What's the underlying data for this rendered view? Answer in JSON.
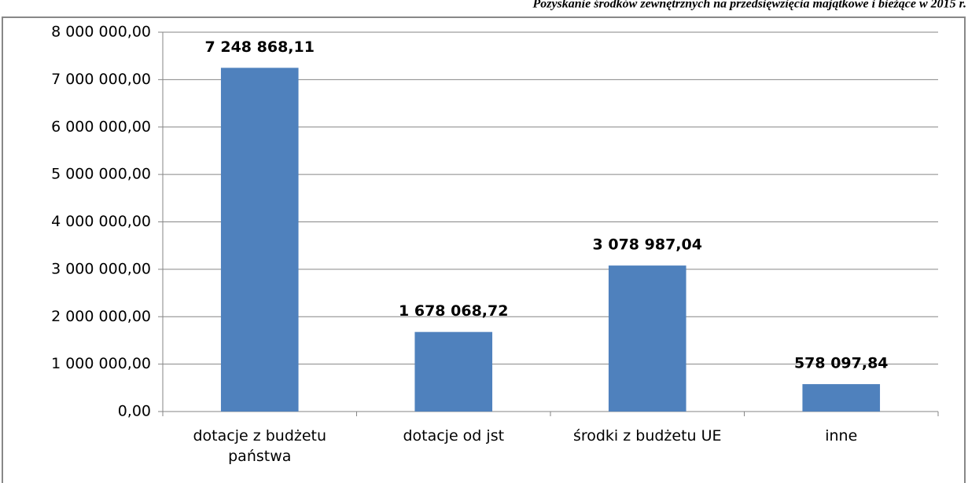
{
  "chart_data": {
    "type": "bar",
    "title": "Pozyskanie środków zewnętrznych na przedsięwzięcia majątkowe i bieżące w 2015 r.",
    "categories": [
      "dotacje z budżetu państwa",
      "dotacje od jst",
      "środki z budżetu UE",
      "inne"
    ],
    "values": [
      7248868.11,
      1678068.72,
      3078987.04,
      578097.84
    ],
    "value_labels": [
      "7 248 868,11",
      "1 678 068,72",
      "3 078 987,04",
      "578 097,84"
    ],
    "color": "#4f81bd",
    "ylim": [
      0,
      8000000
    ],
    "yticks": [
      {
        "value": 0,
        "label": "0,00"
      },
      {
        "value": 1000000,
        "label": "1 000 000,00"
      },
      {
        "value": 2000000,
        "label": "2 000 000,00"
      },
      {
        "value": 3000000,
        "label": "3 000 000,00"
      },
      {
        "value": 4000000,
        "label": "4 000 000,00"
      },
      {
        "value": 5000000,
        "label": "5 000 000,00"
      },
      {
        "value": 6000000,
        "label": "6 000 000,00"
      },
      {
        "value": 7000000,
        "label": "7 000 000,00"
      },
      {
        "value": 8000000,
        "label": "8 000 000,00"
      }
    ],
    "grid": true
  }
}
